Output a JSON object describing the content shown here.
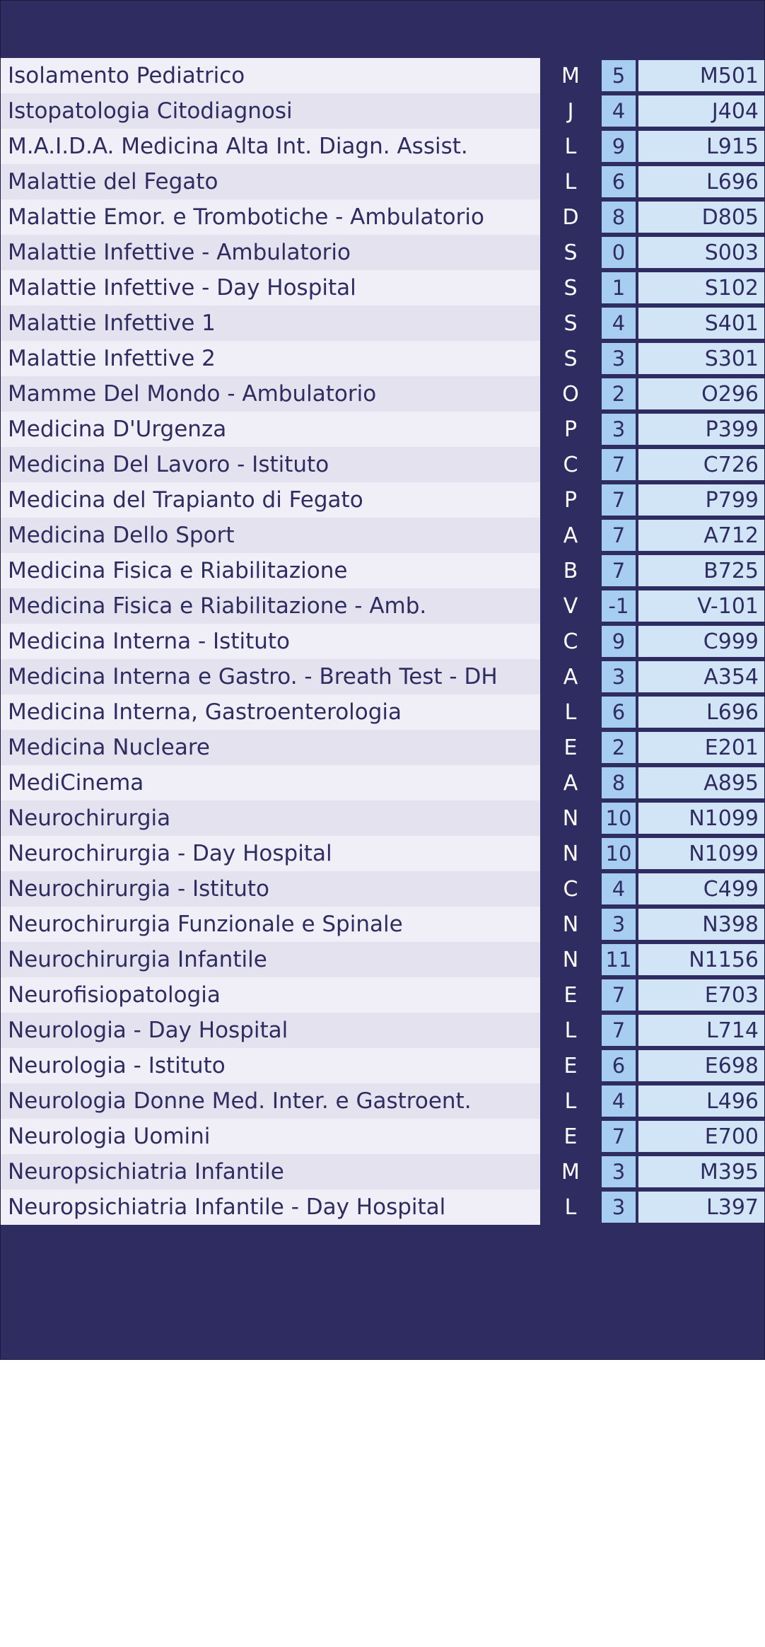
{
  "rows": [
    {
      "name": "Isolamento Pediatrico",
      "letter": "M",
      "floor": "5",
      "code": "M501"
    },
    {
      "name": "Istopatologia Citodiagnosi",
      "letter": "J",
      "floor": "4",
      "code": "J404"
    },
    {
      "name": "M.A.I.D.A. Medicina Alta Int. Diagn. Assist.",
      "letter": "L",
      "floor": "9",
      "code": "L915"
    },
    {
      "name": "Malattie del Fegato",
      "letter": "L",
      "floor": "6",
      "code": "L696"
    },
    {
      "name": "Malattie Emor. e Trombotiche - Ambulatorio",
      "letter": "D",
      "floor": "8",
      "code": "D805"
    },
    {
      "name": "Malattie Infettive - Ambulatorio",
      "letter": "S",
      "floor": "0",
      "code": "S003"
    },
    {
      "name": "Malattie Infettive - Day Hospital",
      "letter": "S",
      "floor": "1",
      "code": "S102"
    },
    {
      "name": "Malattie Infettive 1",
      "letter": "S",
      "floor": "4",
      "code": "S401"
    },
    {
      "name": "Malattie Infettive 2",
      "letter": "S",
      "floor": "3",
      "code": "S301"
    },
    {
      "name": "Mamme Del Mondo - Ambulatorio",
      "letter": "O",
      "floor": "2",
      "code": "O296"
    },
    {
      "name": "Medicina D'Urgenza",
      "letter": "P",
      "floor": "3",
      "code": "P399"
    },
    {
      "name": "Medicina Del Lavoro - Istituto",
      "letter": "C",
      "floor": "7",
      "code": "C726"
    },
    {
      "name": "Medicina del Trapianto di Fegato",
      "letter": "P",
      "floor": "7",
      "code": "P799"
    },
    {
      "name": "Medicina Dello Sport",
      "letter": "A",
      "floor": "7",
      "code": "A712"
    },
    {
      "name": "Medicina Fisica e Riabilitazione",
      "letter": "B",
      "floor": "7",
      "code": "B725"
    },
    {
      "name": "Medicina Fisica e Riabilitazione - Amb.",
      "letter": "V",
      "floor": "-1",
      "code": "V-101"
    },
    {
      "name": "Medicina Interna - Istituto",
      "letter": "C",
      "floor": "9",
      "code": "C999"
    },
    {
      "name": "Medicina Interna e Gastro. - Breath Test - DH",
      "letter": "A",
      "floor": "3",
      "code": "A354"
    },
    {
      "name": "Medicina Interna, Gastroenterologia",
      "letter": "L",
      "floor": "6",
      "code": "L696"
    },
    {
      "name": "Medicina Nucleare",
      "letter": "E",
      "floor": "2",
      "code": "E201"
    },
    {
      "name": "MediCinema",
      "letter": "A",
      "floor": "8",
      "code": "A895"
    },
    {
      "name": "Neurochirurgia",
      "letter": "N",
      "floor": "10",
      "code": "N1099"
    },
    {
      "name": "Neurochirurgia - Day Hospital",
      "letter": "N",
      "floor": "10",
      "code": "N1099"
    },
    {
      "name": "Neurochirurgia - Istituto",
      "letter": "C",
      "floor": "4",
      "code": "C499"
    },
    {
      "name": "Neurochirurgia Funzionale e Spinale",
      "letter": "N",
      "floor": "3",
      "code": "N398"
    },
    {
      "name": "Neurochirurgia Infantile",
      "letter": "N",
      "floor": "11",
      "code": "N1156"
    },
    {
      "name": "Neurofisiopatologia",
      "letter": "E",
      "floor": "7",
      "code": "E703"
    },
    {
      "name": "Neurologia - Day Hospital",
      "letter": "L",
      "floor": "7",
      "code": "L714"
    },
    {
      "name": "Neurologia - Istituto",
      "letter": "E",
      "floor": "6",
      "code": "E698"
    },
    {
      "name": "Neurologia Donne Med. Inter. e Gastroent.",
      "letter": "L",
      "floor": "4",
      "code": "L496"
    },
    {
      "name": "Neurologia Uomini",
      "letter": "E",
      "floor": "7",
      "code": "E700"
    },
    {
      "name": "Neuropsichiatria Infantile",
      "letter": "M",
      "floor": "3",
      "code": "M395"
    },
    {
      "name": "Neuropsichiatria Infantile - Day Hospital",
      "letter": "L",
      "floor": "3",
      "code": "L397"
    }
  ]
}
